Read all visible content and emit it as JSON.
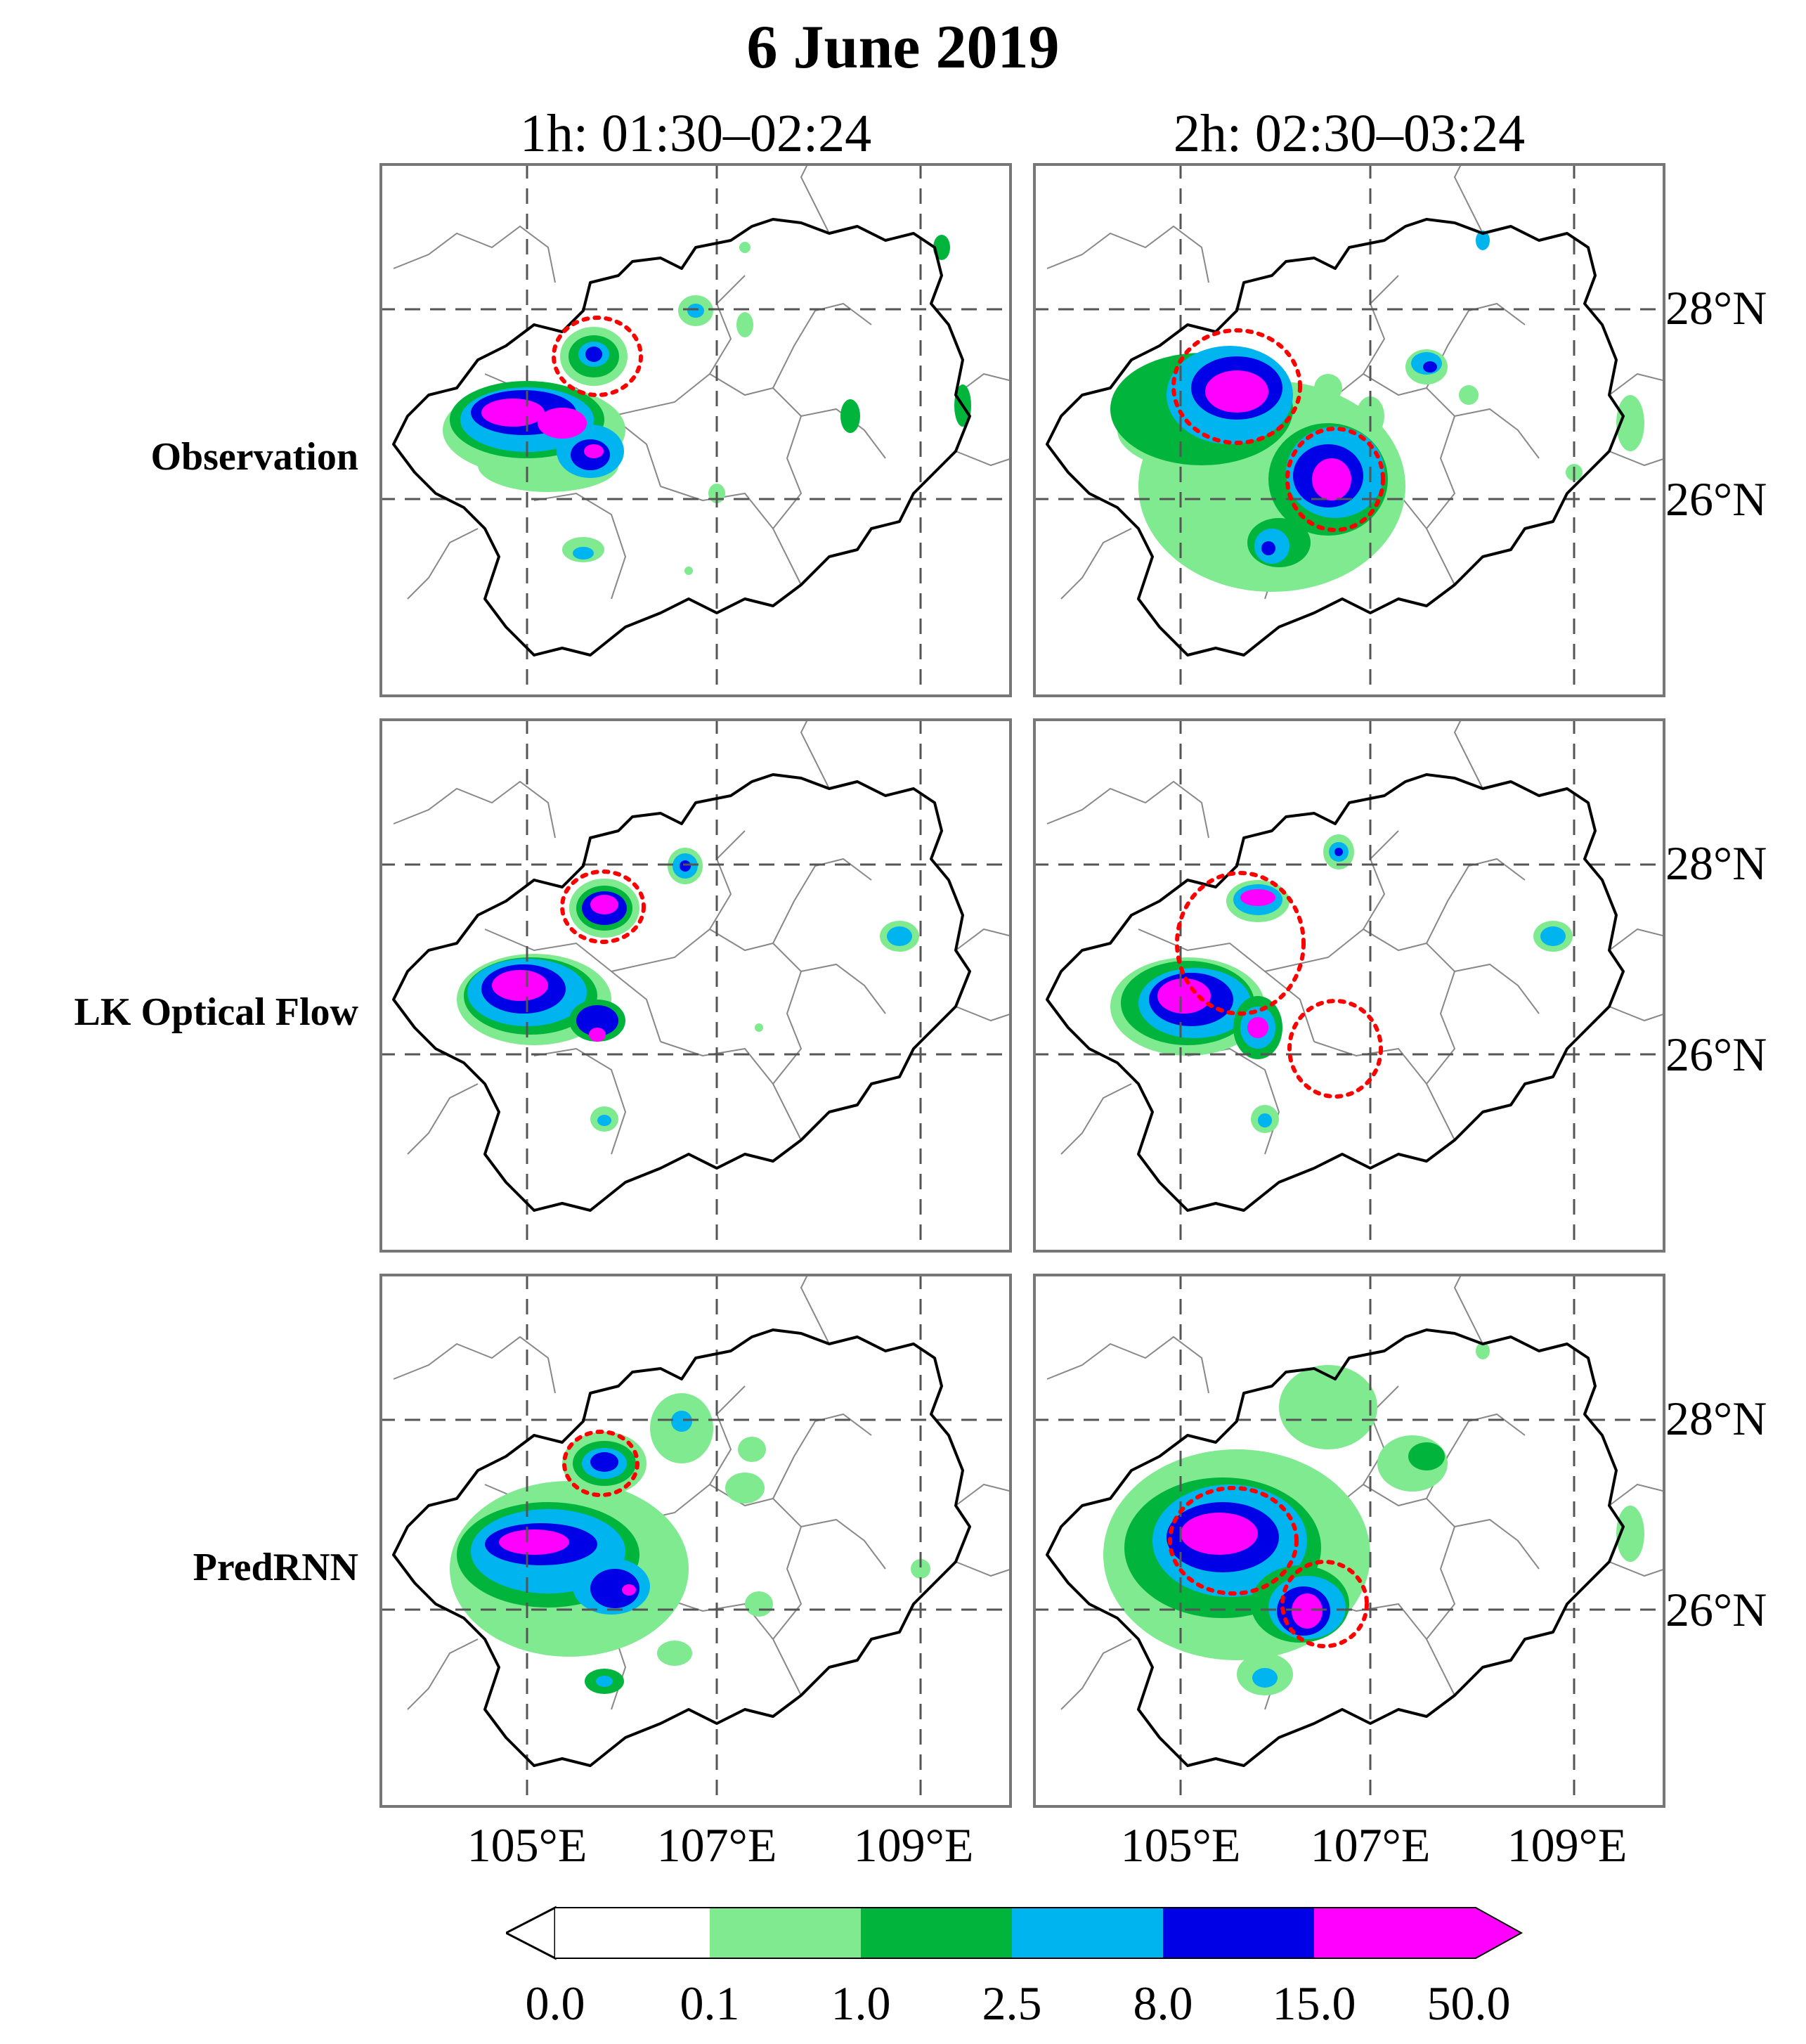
{
  "title": "6 June 2019",
  "columns": [
    {
      "label": "1h: 01:30–02:24"
    },
    {
      "label": "2h: 02:30–03:24"
    }
  ],
  "rows": [
    {
      "label": "Observation"
    },
    {
      "label": "LK Optical Flow"
    },
    {
      "label": "PredRNN"
    }
  ],
  "lat_labels": [
    "28°N",
    "26°N"
  ],
  "lon_labels": [
    "105°E",
    "107°E",
    "109°E"
  ],
  "colorbar": {
    "ticks": [
      "0.0",
      "0.1",
      "1.0",
      "2.5",
      "8.0",
      "15.0",
      "50.0"
    ],
    "colors": [
      "#ffffff",
      "#7fea8f",
      "#00b43c",
      "#00b4f0",
      "#0000e6",
      "#ff00ff"
    ]
  },
  "highlight_color": "#ff0000"
}
